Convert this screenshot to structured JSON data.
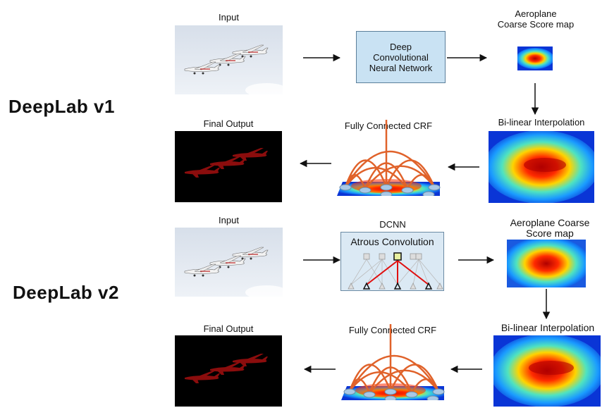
{
  "v1": {
    "title": "DeepLab v1",
    "input_label": "Input",
    "dcnn_text": "Deep Convolutional Neural Network",
    "coarse_label_l1": "Aeroplane",
    "coarse_label_l2": "Coarse Score map",
    "bilinear_label": "Bi-linear Interpolation",
    "crf_label": "Fully Connected CRF",
    "final_label": "Final Output"
  },
  "v2": {
    "title": "DeepLab v2",
    "input_label": "Input",
    "dcnn_label": "DCNN",
    "atrous_label": "Atrous Convolution",
    "coarse_label_l1": "Aeroplane Coarse",
    "coarse_label_l2": "Score map",
    "bilinear_label": "Bi-linear Interpolation",
    "crf_label": "Fully Connected CRF",
    "final_label": "Final Output"
  },
  "colors": {
    "dcnn_fill": "#c9e2f3",
    "crf_edges": "#e0622a",
    "mask": "#8b0d0d",
    "sky": "#dde5ef"
  }
}
